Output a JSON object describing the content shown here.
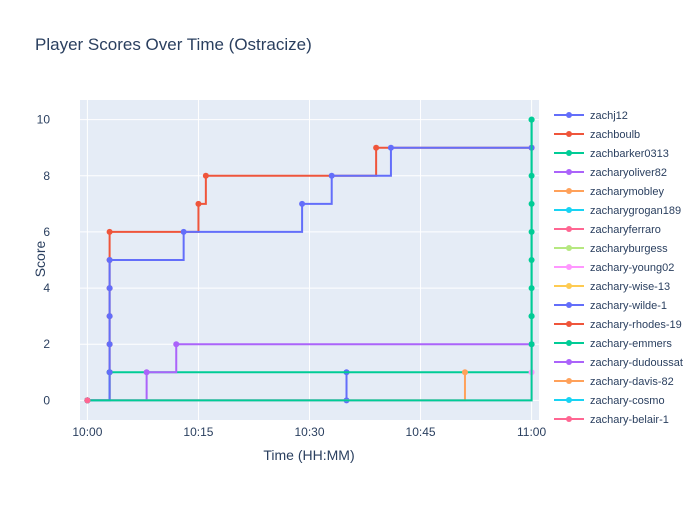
{
  "chart_data": {
    "type": "line",
    "line_shape": "step",
    "title": "Player Scores Over Time (Ostracize)",
    "xlabel": "Time (HH:MM)",
    "ylabel": "Score",
    "x_ticks": [
      "10:00",
      "10:15",
      "10:30",
      "10:45",
      "11:00"
    ],
    "x_range": [
      "09:59",
      "11:01"
    ],
    "y_ticks": [
      0,
      2,
      4,
      6,
      8,
      10
    ],
    "y_range": [
      -0.7,
      10.7
    ],
    "grid": true,
    "legend_position": "right",
    "series": [
      {
        "name": "zachj12",
        "color": "#636efa",
        "points": [
          [
            "10:00",
            0
          ],
          [
            "10:35",
            0
          ],
          [
            "10:35",
            1
          ]
        ]
      },
      {
        "name": "zachboulb",
        "color": "#ef553b",
        "points": [
          [
            "10:00",
            0
          ],
          [
            "10:03",
            1
          ],
          [
            "10:03",
            2
          ],
          [
            "10:03",
            3
          ],
          [
            "10:03",
            4
          ],
          [
            "10:03",
            5
          ],
          [
            "10:03",
            6
          ],
          [
            "10:15",
            7
          ],
          [
            "10:16",
            8
          ],
          [
            "10:39",
            9
          ],
          [
            "11:00",
            9
          ]
        ]
      },
      {
        "name": "zachbarker0313",
        "color": "#00cc96",
        "points": [
          [
            "10:00",
            0
          ],
          [
            "10:03",
            1
          ],
          [
            "11:00",
            2
          ],
          [
            "11:00",
            3
          ],
          [
            "11:00",
            5
          ],
          [
            "11:00",
            6
          ],
          [
            "11:00",
            7
          ],
          [
            "11:00",
            10
          ]
        ]
      },
      {
        "name": "zacharyoliver82",
        "color": "#ab63fa",
        "points": [
          [
            "10:00",
            0
          ],
          [
            "10:08",
            1
          ],
          [
            "10:12",
            2
          ],
          [
            "11:00",
            2
          ]
        ]
      },
      {
        "name": "zacharymobley",
        "color": "#ffa15a",
        "points": [
          [
            "10:00",
            0
          ],
          [
            "10:51",
            1
          ]
        ]
      },
      {
        "name": "zacharygrogan189",
        "color": "#19d3f3",
        "points": [
          [
            "10:00",
            0
          ]
        ]
      },
      {
        "name": "zacharyferraro",
        "color": "#ff6692",
        "points": [
          [
            "10:00",
            0
          ]
        ]
      },
      {
        "name": "zacharyburgess",
        "color": "#b6e880",
        "points": [
          [
            "10:00",
            0
          ]
        ]
      },
      {
        "name": "zachary-young02",
        "color": "#ff97ff",
        "points": [
          [
            "10:00",
            0
          ],
          [
            "11:00",
            1
          ],
          [
            "11:00",
            2
          ]
        ]
      },
      {
        "name": "zachary-wise-13",
        "color": "#fecb52",
        "points": [
          [
            "10:00",
            0
          ]
        ]
      },
      {
        "name": "zachary-wilde-1",
        "color": "#636efa",
        "points": [
          [
            "10:00",
            0
          ],
          [
            "10:03",
            1
          ],
          [
            "10:03",
            2
          ],
          [
            "10:03",
            3
          ],
          [
            "10:03",
            4
          ],
          [
            "10:03",
            5
          ],
          [
            "10:13",
            6
          ],
          [
            "10:29",
            7
          ],
          [
            "10:33",
            8
          ],
          [
            "10:41",
            9
          ],
          [
            "11:00",
            9
          ]
        ]
      },
      {
        "name": "zachary-rhodes-19",
        "color": "#ef553b",
        "points": [
          [
            "10:00",
            0
          ]
        ]
      },
      {
        "name": "zachary-emmers",
        "color": "#00cc96",
        "points": [
          [
            "10:00",
            0
          ],
          [
            "11:00",
            2
          ],
          [
            "11:00",
            3
          ],
          [
            "11:00",
            4
          ],
          [
            "11:00",
            8
          ],
          [
            "11:00",
            10
          ]
        ]
      },
      {
        "name": "zachary-dudoussat",
        "color": "#ab63fa",
        "points": [
          [
            "10:00",
            0
          ]
        ]
      },
      {
        "name": "zachary-davis-82",
        "color": "#ffa15a",
        "points": [
          [
            "10:00",
            0
          ]
        ]
      },
      {
        "name": "zachary-cosmo",
        "color": "#19d3f3",
        "points": [
          [
            "10:00",
            0
          ]
        ]
      },
      {
        "name": "zachary-belair-1",
        "color": "#ff6692",
        "points": [
          [
            "10:00",
            0
          ]
        ]
      }
    ]
  }
}
